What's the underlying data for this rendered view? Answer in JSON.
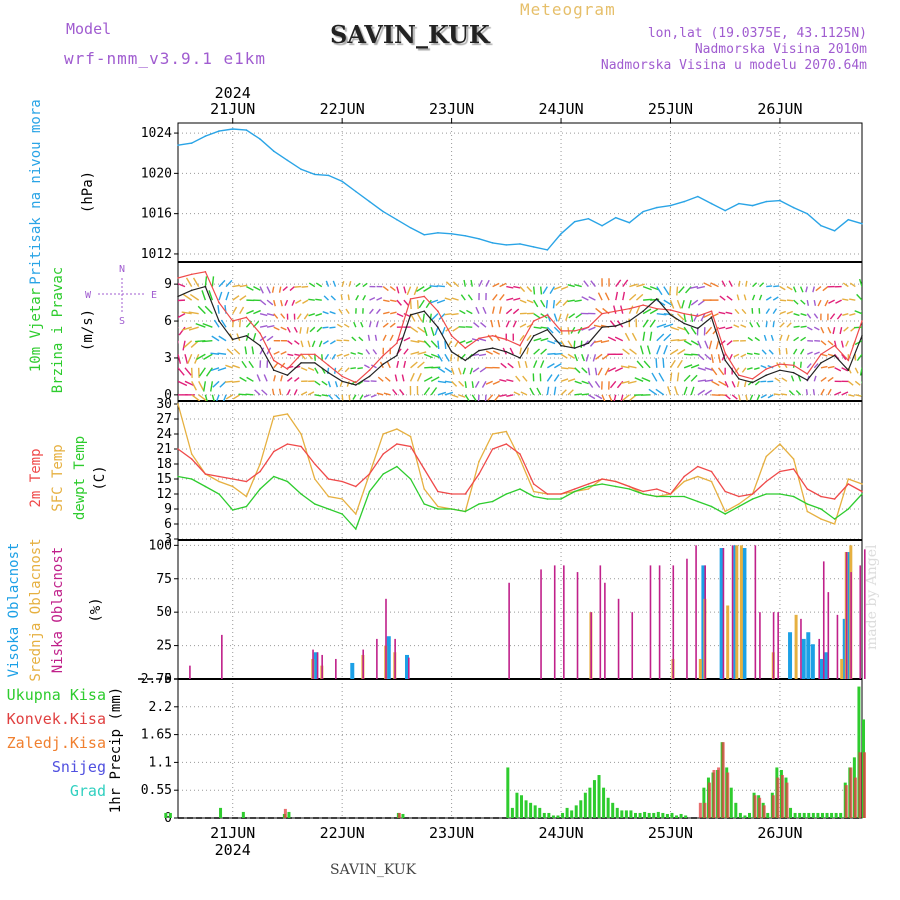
{
  "header": {
    "model_label": "Model",
    "model_name": "wrf-nmm_v3.9.1 e1km",
    "station": "SAVIN_KUK",
    "meteogram": "Meteogram",
    "lonlat": "lon,lat (19.0375E, 43.1125N)",
    "elevation": "Nadmorska Visina 2010m",
    "model_elevation": "Nadmorska Visina u modelu 2070.64m"
  },
  "footer": {
    "station": "SAVIN_KUK",
    "watermark": "made by Angel"
  },
  "colors": {
    "pressure": "#2aa4e6",
    "temp": "#ef4a4a",
    "sfc_temp": "#e6b040",
    "dewpoint": "#2ecc2e",
    "cloud_high": "#1ca0e6",
    "cloud_mid": "#e6b040",
    "cloud_low": "#c0208a",
    "precip_total": "#2ecc2e",
    "precip_conv": "#e04040",
    "precip_frozen": "#f08030",
    "precip_snow": "#5050e0",
    "precip_graupel": "#30d0c0",
    "wind_speed": "#222222",
    "wind_gust": "#ef4a4a"
  },
  "time_axis": {
    "top_year": "2024",
    "bottom_year": "2024",
    "days": [
      "21JUN",
      "22JUN",
      "23JUN",
      "24JUN",
      "25JUN",
      "26JUN"
    ],
    "start": "2024-06-20T12:00",
    "end": "2024-06-26T18:00"
  },
  "panel_labels": {
    "pressure": {
      "title": "Pritisak na nivou mora",
      "unit": "(hPa)"
    },
    "wind": {
      "title1": "10m Vjetar",
      "title2": "Brzina i Pravac",
      "unit": "(m/s)",
      "compass": [
        "N",
        "S",
        "W",
        "E"
      ]
    },
    "temp": {
      "l1": "2m Temp",
      "l2": "SFC Temp",
      "l3": "dewpt Temp",
      "unit": "(C)"
    },
    "cloud": {
      "l1": "Visoka Oblacnost",
      "l2": "Srednja Oblacnost",
      "l3": "Niska Oblacnost",
      "unit": "(%)"
    },
    "precip": {
      "unit": "1hr Precip (mm)",
      "legend": [
        "Ukupna Kisa",
        "Konvek.Kisa",
        "Zaledj.Kisa",
        "Snijeg",
        "Grad"
      ]
    }
  },
  "chart_data": [
    {
      "type": "line",
      "id": "pressure",
      "ylabel": "(hPa)",
      "ylim": [
        1011.2,
        1025
      ],
      "yticks": [
        1012,
        1016,
        1020,
        1024
      ],
      "grid": true,
      "x_hours_from_start": [
        0,
        3,
        6,
        9,
        12,
        15,
        18,
        21,
        24,
        27,
        30,
        33,
        36,
        39,
        42,
        45,
        48,
        51,
        54,
        57,
        60,
        63,
        66,
        69,
        72,
        75,
        78,
        81,
        84,
        87,
        90,
        93,
        96,
        99,
        102,
        105,
        108,
        111,
        114,
        117,
        120,
        123,
        126,
        129,
        132,
        135,
        138,
        141,
        144,
        147,
        150
      ],
      "series": [
        {
          "values": [
            1022.8,
            1023.0,
            1023.7,
            1024.2,
            1024.4,
            1024.3,
            1023.4,
            1022.2,
            1021.3,
            1020.4,
            1019.9,
            1019.8,
            1019.2,
            1018.2,
            1017.2,
            1016.2,
            1015.4,
            1014.6,
            1013.9,
            1014.1,
            1014.0,
            1013.8,
            1013.5,
            1013.1,
            1012.9,
            1013.0,
            1012.7,
            1012.4,
            1014.0,
            1015.2,
            1015.5,
            1014.8,
            1015.6,
            1015.1,
            1016.2,
            1016.6,
            1016.8,
            1017.2,
            1017.7,
            1017.0,
            1016.3,
            1017.0,
            1016.8,
            1017.2,
            1017.3,
            1016.6,
            1016.0,
            1014.8,
            1014.3,
            1015.4,
            1015.0
          ]
        }
      ]
    },
    {
      "type": "line",
      "id": "wind",
      "ylabel": "(m/s)",
      "ylim": [
        -0.5,
        10.8
      ],
      "yticks": [
        0,
        3,
        6,
        9
      ],
      "grid": true,
      "x_hours_from_start": [
        0,
        3,
        6,
        9,
        12,
        15,
        18,
        21,
        24,
        27,
        30,
        33,
        36,
        39,
        42,
        45,
        48,
        51,
        54,
        57,
        60,
        63,
        66,
        69,
        72,
        75,
        78,
        81,
        84,
        87,
        90,
        93,
        96,
        99,
        102,
        105,
        108,
        111,
        114,
        117,
        120,
        123,
        126,
        129,
        132,
        135,
        138,
        141,
        144,
        147,
        150
      ],
      "series": [
        {
          "name": "speed",
          "values": [
            8.0,
            8.5,
            8.8,
            6.0,
            4.5,
            4.8,
            4.0,
            2.0,
            1.6,
            2.6,
            2.6,
            1.8,
            1.1,
            0.8,
            1.5,
            2.5,
            3.2,
            6.5,
            6.8,
            5.5,
            3.5,
            2.8,
            3.6,
            3.8,
            3.5,
            3.0,
            4.8,
            5.3,
            4.0,
            3.8,
            4.2,
            5.5,
            5.6,
            6.0,
            6.8,
            7.8,
            6.5,
            5.8,
            5.4,
            6.3,
            2.8,
            1.3,
            1.0,
            1.6,
            2.0,
            1.8,
            1.2,
            2.6,
            3.2,
            2.0,
            4.8
          ]
        },
        {
          "name": "gust",
          "values": [
            9.5,
            9.8,
            10.0,
            7.5,
            6.0,
            6.3,
            5.0,
            2.8,
            2.1,
            3.3,
            3.3,
            2.4,
            1.5,
            1.0,
            2.0,
            3.2,
            4.2,
            7.8,
            8.0,
            6.8,
            4.8,
            3.8,
            4.6,
            4.8,
            4.5,
            4.0,
            6.0,
            6.5,
            5.2,
            5.2,
            5.5,
            6.6,
            6.8,
            7.0,
            7.3,
            7.0,
            6.9,
            6.6,
            6.4,
            6.8,
            3.4,
            1.6,
            1.3,
            2.1,
            2.5,
            2.4,
            1.7,
            3.3,
            4.0,
            2.8,
            6.0
          ]
        }
      ]
    },
    {
      "type": "line",
      "id": "temperature",
      "ylabel": "(C)",
      "ylim": [
        2.8,
        30.6
      ],
      "yticks": [
        3,
        6,
        9,
        12,
        15,
        18,
        21,
        24,
        27,
        30
      ],
      "grid": true,
      "x_hours_from_start": [
        0,
        3,
        6,
        9,
        12,
        15,
        18,
        21,
        24,
        27,
        30,
        33,
        36,
        39,
        42,
        45,
        48,
        51,
        54,
        57,
        60,
        63,
        66,
        69,
        72,
        75,
        78,
        81,
        84,
        87,
        90,
        93,
        96,
        99,
        102,
        105,
        108,
        111,
        114,
        117,
        120,
        123,
        126,
        129,
        132,
        135,
        138,
        141,
        144,
        147,
        150
      ],
      "series": [
        {
          "name": "2m Temp",
          "values": [
            21.0,
            19.0,
            16.0,
            15.5,
            15.0,
            14.5,
            16.5,
            20.5,
            22.0,
            21.5,
            18.0,
            15.0,
            14.5,
            13.5,
            16.0,
            20.0,
            22.0,
            21.5,
            17.0,
            12.5,
            12.0,
            12.0,
            16.0,
            21.0,
            22.0,
            20.0,
            14.0,
            12.0,
            12.0,
            13.0,
            14.0,
            15.0,
            14.5,
            13.5,
            12.5,
            13.0,
            12.0,
            15.5,
            17.5,
            16.5,
            12.5,
            11.5,
            12.0,
            14.5,
            16.5,
            17.0,
            13.0,
            11.5,
            11.0,
            14.0,
            12.5
          ]
        },
        {
          "name": "SFC Temp",
          "values": [
            30.0,
            20.0,
            16.0,
            14.5,
            13.5,
            11.5,
            18.0,
            27.5,
            28.0,
            24.0,
            15.0,
            11.5,
            11.0,
            8.0,
            16.0,
            24.0,
            25.0,
            23.5,
            13.0,
            9.5,
            9.0,
            8.5,
            18.5,
            24.0,
            24.5,
            19.0,
            12.5,
            12.0,
            12.0,
            12.5,
            13.0,
            15.0,
            14.5,
            13.5,
            12.0,
            11.5,
            12.0,
            14.5,
            15.5,
            14.5,
            8.5,
            10.0,
            12.0,
            19.5,
            22.0,
            19.0,
            8.5,
            7.0,
            6.0,
            15.0,
            14.0
          ]
        },
        {
          "name": "dewpt Temp",
          "values": [
            15.5,
            15.0,
            13.5,
            12.0,
            8.8,
            9.5,
            13.0,
            15.5,
            14.5,
            12.0,
            10.0,
            9.0,
            8.0,
            5.0,
            12.5,
            16.0,
            17.5,
            15.0,
            10.0,
            9.0,
            9.0,
            8.5,
            10.0,
            10.5,
            12.0,
            13.0,
            11.5,
            11.0,
            11.0,
            12.5,
            13.5,
            14.0,
            13.5,
            13.0,
            12.0,
            11.5,
            11.5,
            11.5,
            10.5,
            9.5,
            8.0,
            9.5,
            11.0,
            12.0,
            12.0,
            11.5,
            10.0,
            9.0,
            7.0,
            9.0,
            12.0
          ]
        }
      ]
    },
    {
      "type": "bar",
      "id": "cloud_cover",
      "ylabel": "(%)",
      "ylim": [
        0,
        104
      ],
      "yticks": [
        0,
        25,
        50,
        75,
        100
      ],
      "grid": true,
      "series": [
        {
          "name": "Visoka Oblacnost",
          "x": [
            30,
            38,
            46,
            50,
            115,
            119,
            122,
            124,
            134,
            137,
            138,
            139,
            141,
            142,
            146,
            147
          ],
          "values": [
            20,
            12,
            32,
            18,
            85,
            98,
            100,
            98,
            35,
            30,
            35,
            26,
            15,
            20,
            45,
            95
          ]
        },
        {
          "name": "Srednja Oblacnost",
          "x": [
            29,
            31,
            40,
            45,
            47,
            90,
            108,
            114,
            115,
            120,
            122,
            123,
            130,
            135,
            145,
            146,
            147
          ],
          "values": [
            15,
            10,
            18,
            25,
            20,
            50,
            15,
            15,
            60,
            55,
            100,
            100,
            20,
            48,
            15,
            95,
            100
          ]
        },
        {
          "name": "Niska Oblacnost",
          "x": [
            2,
            9,
            29,
            30,
            31,
            34,
            40,
            43,
            45,
            47,
            50,
            72,
            79,
            82,
            84,
            87,
            90,
            92,
            93,
            96,
            99,
            103,
            105,
            108,
            111,
            113,
            115,
            119,
            121,
            126,
            127,
            130,
            131,
            136,
            140,
            141,
            142,
            144,
            146,
            147,
            149,
            150
          ],
          "values": [
            10,
            33,
            22,
            20,
            18,
            15,
            22,
            30,
            60,
            30,
            16,
            72,
            82,
            85,
            85,
            80,
            50,
            85,
            72,
            60,
            50,
            85,
            85,
            85,
            90,
            100,
            85,
            98,
            100,
            100,
            50,
            50,
            50,
            45,
            30,
            88,
            65,
            48,
            95,
            80,
            85,
            97
          ]
        }
      ]
    },
    {
      "type": "bar",
      "id": "precipitation",
      "ylabel": "1hr Precip (mm)",
      "ylim": [
        0,
        2.75
      ],
      "yticks": [
        0,
        0.55,
        1.1,
        1.65,
        2.2,
        2.75
      ],
      "grid": true,
      "series": [
        {
          "name": "Ukupna Kisa",
          "x": [
            -3,
            -2,
            9,
            14,
            23,
            24,
            48,
            49,
            72,
            73,
            74,
            75,
            76,
            77,
            78,
            79,
            80,
            81,
            82,
            83,
            84,
            85,
            86,
            87,
            88,
            89,
            90,
            91,
            92,
            93,
            94,
            95,
            96,
            97,
            98,
            99,
            100,
            101,
            102,
            103,
            104,
            105,
            106,
            107,
            108,
            109,
            110,
            111,
            115,
            116,
            117,
            118,
            119,
            120,
            121,
            122,
            123,
            124,
            125,
            126,
            127,
            128,
            129,
            130,
            131,
            132,
            133,
            134,
            135,
            136,
            137,
            138,
            139,
            140,
            141,
            142,
            143,
            144,
            145,
            146,
            147,
            148,
            149,
            150
          ],
          "values": [
            0.1,
            0.1,
            0.2,
            0.12,
            0.08,
            0.12,
            0.1,
            0.08,
            1.0,
            0.2,
            0.5,
            0.45,
            0.35,
            0.3,
            0.25,
            0.2,
            0.1,
            0.1,
            0.05,
            0.05,
            0.1,
            0.2,
            0.15,
            0.25,
            0.35,
            0.5,
            0.6,
            0.75,
            0.85,
            0.6,
            0.4,
            0.3,
            0.2,
            0.15,
            0.15,
            0.15,
            0.1,
            0.1,
            0.12,
            0.1,
            0.1,
            0.12,
            0.1,
            0.08,
            0.1,
            0.05,
            0.08,
            0.05,
            0.6,
            0.8,
            0.9,
            0.95,
            1.5,
            1.0,
            0.6,
            0.3,
            0.1,
            0.05,
            0.1,
            0.5,
            0.45,
            0.3,
            0.1,
            0.5,
            1.0,
            0.95,
            0.8,
            0.2,
            0.1,
            0.1,
            0.1,
            0.1,
            0.1,
            0.1,
            0.1,
            0.1,
            0.1,
            0.1,
            0.1,
            0.7,
            1.0,
            1.2,
            2.6,
            1.95
          ]
        },
        {
          "name": "Konvek.Kisa",
          "x": [
            23,
            48,
            114,
            115,
            116,
            117,
            118,
            119,
            120,
            126,
            127,
            128,
            130,
            131,
            132,
            133,
            146,
            147,
            148,
            149,
            150
          ],
          "values": [
            0.18,
            0.1,
            0.3,
            0.3,
            0.7,
            0.95,
            1.0,
            1.5,
            0.9,
            0.45,
            0.4,
            0.25,
            0.45,
            0.8,
            0.85,
            0.7,
            0.65,
            1.0,
            0.8,
            1.3,
            1.3
          ]
        }
      ]
    }
  ]
}
